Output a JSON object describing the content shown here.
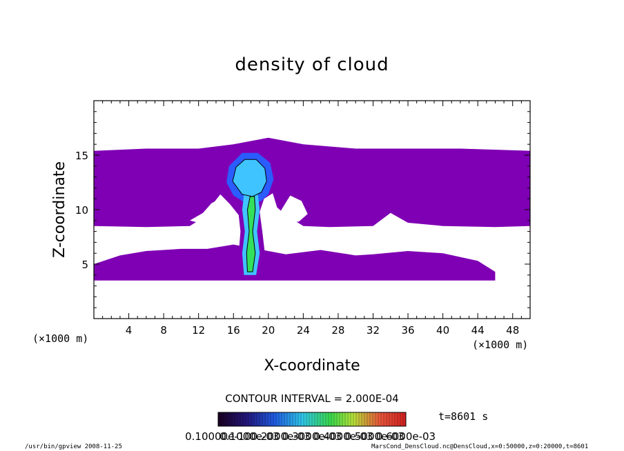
{
  "chart_data": {
    "type": "heatmap",
    "title": "density of cloud",
    "xlabel": "X-coordinate",
    "ylabel": "Z-coordinate",
    "x_unit": "(×1000 m)",
    "y_unit": "(×1000 m)",
    "xlim": [
      0,
      50
    ],
    "ylim": [
      0,
      20
    ],
    "x_ticks": [
      4,
      8,
      12,
      16,
      20,
      24,
      28,
      32,
      36,
      40,
      44,
      48
    ],
    "y_ticks": [
      5,
      10,
      15
    ],
    "contour_interval": "CONTOUR INTERVAL = 2.000E-04",
    "time_label": "t=8601 s",
    "colorbar_labels": [
      "0.10000e-10",
      "0.1000e-03",
      "0.2000e-03",
      "0.3000e-03",
      "0.4000e-03",
      "0.5000e-03",
      "0.6000e-03"
    ],
    "colorbar_range": [
      0,
      0.0007
    ],
    "colors": {
      "background_cloud": "#7f00b4",
      "low_density": "#2a5cff",
      "mid_density": "#3fc4ff",
      "high_density": "#33e05a",
      "contour_line": "#000000"
    },
    "regions": [
      {
        "name": "upper cloud layer",
        "density": 2e-05,
        "points": [
          [
            0,
            15.4
          ],
          [
            6,
            15.6
          ],
          [
            12,
            15.6
          ],
          [
            16,
            16.0
          ],
          [
            20,
            16.6
          ],
          [
            24,
            16.0
          ],
          [
            30,
            15.6
          ],
          [
            36,
            15.6
          ],
          [
            42,
            15.6
          ],
          [
            50,
            15.4
          ],
          [
            50,
            8.5
          ],
          [
            46,
            8.4
          ],
          [
            40,
            8.5
          ],
          [
            36,
            8.8
          ],
          [
            34,
            9.7
          ],
          [
            32,
            8.5
          ],
          [
            27,
            8.4
          ],
          [
            24,
            8.5
          ],
          [
            22,
            9.5
          ],
          [
            21,
            10.2
          ],
          [
            20.5,
            11.5
          ],
          [
            19.5,
            11.0
          ],
          [
            19,
            9.8
          ],
          [
            19.3,
            8
          ],
          [
            19.6,
            6
          ],
          [
            19.2,
            4.6
          ],
          [
            18.4,
            4.2
          ],
          [
            17.2,
            4.4
          ],
          [
            16.6,
            6
          ],
          [
            16.8,
            8
          ],
          [
            16.6,
            9.5
          ],
          [
            15.6,
            10.5
          ],
          [
            14.5,
            11.4
          ],
          [
            13.3,
            10.2
          ],
          [
            12,
            9
          ],
          [
            11,
            8.5
          ],
          [
            6,
            8.4
          ],
          [
            0,
            8.5
          ]
        ]
      },
      {
        "name": "lower cloud layer",
        "density": 2e-05,
        "points": [
          [
            0,
            3.5
          ],
          [
            46,
            3.5
          ],
          [
            46,
            4.3
          ],
          [
            44,
            5.3
          ],
          [
            40,
            6.0
          ],
          [
            36,
            6.2
          ],
          [
            32,
            5.9
          ],
          [
            30,
            5.8
          ],
          [
            26,
            6.3
          ],
          [
            24,
            6.1
          ],
          [
            22,
            5.9
          ],
          [
            20,
            6.2
          ],
          [
            16,
            6.8
          ],
          [
            13,
            6.4
          ],
          [
            10,
            6.4
          ],
          [
            6,
            6.2
          ],
          [
            3,
            5.8
          ],
          [
            0,
            5.0
          ]
        ]
      },
      {
        "name": "upper gap left",
        "density": 0,
        "points": [
          [
            11,
            9.0
          ],
          [
            12.5,
            9.7
          ],
          [
            13.5,
            10.6
          ],
          [
            14.5,
            11.0
          ],
          [
            15.5,
            9.5
          ],
          [
            14.5,
            8.8
          ],
          [
            12,
            8.8
          ]
        ]
      },
      {
        "name": "upper gap right",
        "density": 0,
        "points": [
          [
            20.8,
            9.0
          ],
          [
            21.5,
            10.0
          ],
          [
            22.5,
            11.3
          ],
          [
            23.8,
            10.8
          ],
          [
            24.5,
            9.6
          ],
          [
            23.5,
            8.9
          ],
          [
            21.5,
            8.8
          ]
        ]
      },
      {
        "name": "cloud head",
        "density": 0.0001,
        "points": [
          [
            15.2,
            12.5
          ],
          [
            15.5,
            14.0
          ],
          [
            17.0,
            15.2
          ],
          [
            18.8,
            15.2
          ],
          [
            20.2,
            14.3
          ],
          [
            20.6,
            12.8
          ],
          [
            20.0,
            11.4
          ],
          [
            19.2,
            10.8
          ],
          [
            18.4,
            10.6
          ],
          [
            17.0,
            10.8
          ],
          [
            16.0,
            11.3
          ]
        ]
      },
      {
        "name": "head core",
        "density": 0.00025,
        "points": [
          [
            15.9,
            12.6
          ],
          [
            16.3,
            13.9
          ],
          [
            17.3,
            14.6
          ],
          [
            18.6,
            14.6
          ],
          [
            19.6,
            13.8
          ],
          [
            19.8,
            12.6
          ],
          [
            19.2,
            11.6
          ],
          [
            18.2,
            11.2
          ],
          [
            17.0,
            11.4
          ]
        ]
      },
      {
        "name": "stem",
        "density": 0.00018,
        "points": [
          [
            17.2,
            4.0
          ],
          [
            17.0,
            6
          ],
          [
            17.3,
            8
          ],
          [
            17.0,
            10
          ],
          [
            17.2,
            11.4
          ],
          [
            18.8,
            11.4
          ],
          [
            19.0,
            10
          ],
          [
            18.7,
            8
          ],
          [
            19.0,
            6
          ],
          [
            18.6,
            4.0
          ]
        ]
      },
      {
        "name": "stem core",
        "density": 0.00035,
        "points": [
          [
            17.6,
            4.3
          ],
          [
            17.5,
            6
          ],
          [
            17.8,
            8
          ],
          [
            17.6,
            10
          ],
          [
            17.9,
            11.2
          ],
          [
            18.4,
            11.2
          ],
          [
            18.5,
            10
          ],
          [
            18.2,
            8
          ],
          [
            18.5,
            6
          ],
          [
            18.2,
            4.3
          ]
        ]
      }
    ]
  },
  "footer": {
    "left": "/usr/bin/gpview   2008-11-25",
    "right": "MarsCond_DensCloud.nc@DensCloud,x=0:50000,z=0:20000,t=8601"
  }
}
